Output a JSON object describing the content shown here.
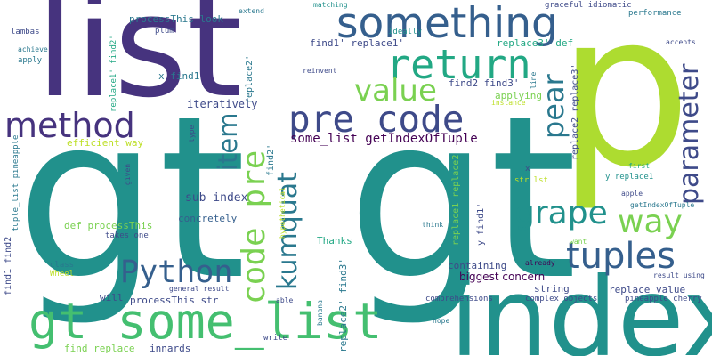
{
  "words": {
    "gt_left": "gt",
    "gt_right": "gt",
    "list": "list",
    "p": "p",
    "index": "index",
    "gt_some_list": "gt some_list",
    "something": "something",
    "return": "return",
    "pre_code": "pre code",
    "method": "method",
    "value": "value",
    "python": "Python",
    "tuples": "tuples",
    "grape": "grape",
    "way": "way",
    "parameter": "parameter",
    "code_pre": "code pre",
    "item": "item",
    "kumquat": "kumquat",
    "pear": "pear",
    "some_list_getindexoftuple": "some_list getIndexOfTuple",
    "sub_index": "sub index",
    "def_processthis": "def processThis",
    "concretely": "concretely",
    "iteratively": "iteratively",
    "efficient_way": "efficient way",
    "processthis_look": "processThis look",
    "processthis_str": "processThis str",
    "find1_replace1": "find1' replace1'",
    "find2_find3": "find2 find3'",
    "replace3_def": "replace3' def",
    "x_find1": "x find1",
    "replace_value": "replace value",
    "biggest_concern": "biggest concern",
    "containing": "containing",
    "string": "string",
    "thanks": "Thanks",
    "applying": "applying",
    "ideally": "Ideally",
    "instance": "instance",
    "matching": "matching",
    "graceful_idiomatic": "graceful idiomatic",
    "performance": "performance",
    "accepts": "accepts",
    "extend": "extend",
    "plum": "plum",
    "lambas": "lambas",
    "achieve": "achieve",
    "apply": "apply",
    "reinvent": "reinvent",
    "first": "first",
    "y_replace1": "y replace1",
    "apple": "apple",
    "getindexoftuple": "getIndexOfTuple",
    "want": "want",
    "already": "already",
    "result_using": "result using",
    "pineapple_cherry": "pineapple cherry",
    "complex_objects": "complex objects",
    "comprehensions": "comprehensions",
    "hope": "hope",
    "write": "write",
    "general_result": "general result",
    "find_replace": "find replace",
    "innards": "innards",
    "will": "will",
    "class": "class",
    "wheel": "Wheel",
    "takes_one": "takes one",
    "think": "think",
    "x": "x",
    "str_lst": "str lst",
    "able": "able",
    "replace1_find2": "replace1' find2'",
    "replace2": "replace2'",
    "find2": "find2'",
    "replace2_replace3": "replace2 replace3'",
    "line": "line",
    "tuple_list_pineapple": "tuple_list pineapple",
    "find1_find2": "find1 find2",
    "given": "given",
    "type": "type",
    "hypothetical": "hypothetical",
    "replace1_replace2": "replace1 replace2",
    "y_find1": "y find1'",
    "banana": "banana",
    "replace2_find3": "replace2' find3'"
  },
  "colors": {
    "dark_purple": "#440154",
    "indigo": "#46337e",
    "slate_blue": "#3e4a89",
    "steel_blue": "#355f8d",
    "blue_teal": "#2a788e",
    "teal": "#21918c",
    "sea_green": "#22a884",
    "green": "#44bf70",
    "light_green": "#7ad151",
    "yellow_green": "#bddf26",
    "lime": "#addc30",
    "yellow": "#fde725"
  }
}
